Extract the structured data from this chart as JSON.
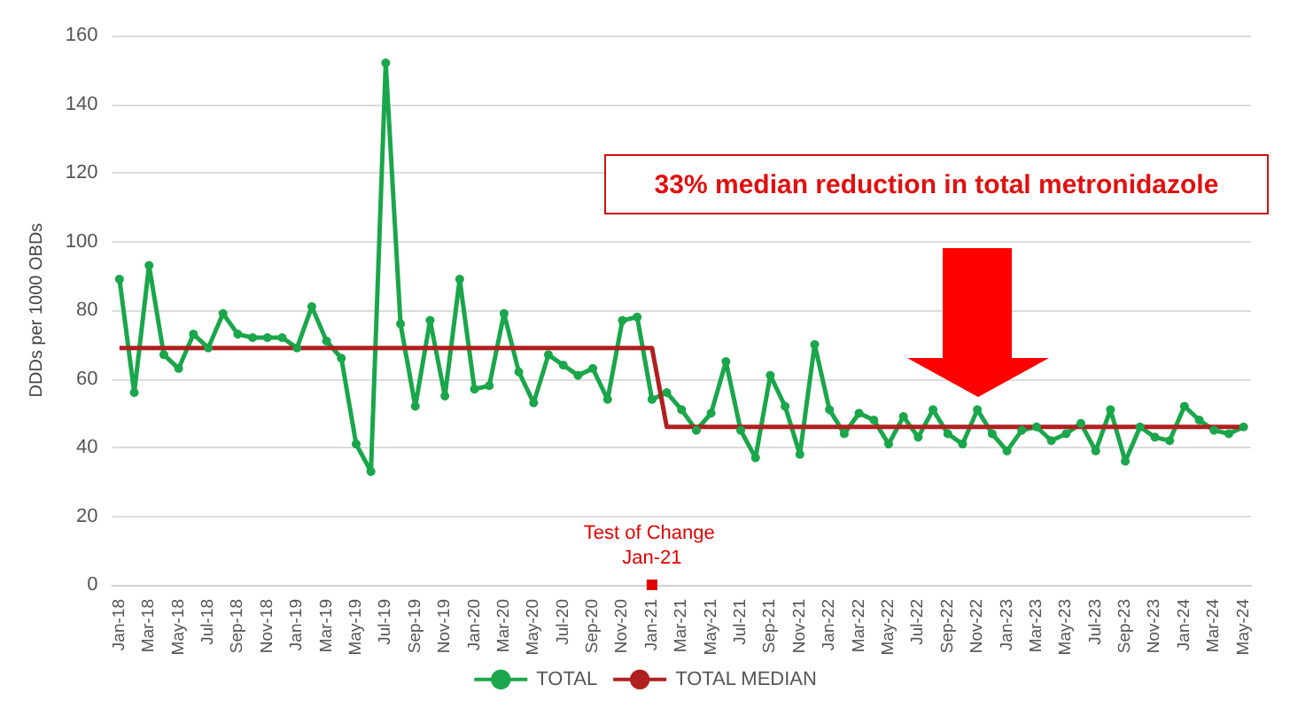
{
  "chart_data": {
    "type": "line",
    "ylabel": "DDDs per 1000 OBDs",
    "categories": [
      "Jan-18",
      null,
      "Mar-18",
      null,
      "May-18",
      null,
      "Jul-18",
      null,
      "Sep-18",
      null,
      "Nov-18",
      null,
      "Jan-19",
      null,
      "Mar-19",
      null,
      "May-19",
      null,
      "Jul-19",
      null,
      "Sep-19",
      null,
      "Nov-19",
      null,
      "Jan-20",
      null,
      "Mar-20",
      null,
      "May-20",
      null,
      "Jul-20",
      null,
      "Sep-20",
      null,
      "Nov-20",
      null,
      "Jan-21",
      null,
      "Mar-21",
      null,
      "May-21",
      null,
      "Jul-21",
      null,
      "Sep-21",
      null,
      "Nov-21",
      null,
      "Jan-22",
      null,
      "Mar-22",
      null,
      "May-22",
      null,
      "Jul-22",
      null,
      "Sep-22",
      null,
      "Nov-22",
      null,
      "Jan-23",
      null,
      "Mar-23",
      null,
      "May-23",
      null,
      "Jul-23",
      null,
      "Sep-23",
      null,
      "Nov-23",
      null,
      "Jan-24",
      null,
      "Mar-24",
      null,
      "May-24"
    ],
    "series": [
      {
        "name": "TOTAL",
        "color": "#1aa64a",
        "marker": "circle",
        "values": [
          89,
          56,
          93,
          67,
          63,
          73,
          69,
          79,
          73,
          72,
          72,
          72,
          69,
          81,
          71,
          66,
          41,
          33,
          152,
          76,
          52,
          77,
          55,
          89,
          57,
          58,
          79,
          62,
          53,
          67,
          64,
          61,
          63,
          54,
          77,
          78,
          54,
          56,
          51,
          45,
          50,
          65,
          45,
          37,
          61,
          52,
          38,
          70,
          51,
          44,
          50,
          48,
          41,
          49,
          43,
          51,
          44,
          41,
          51,
          44,
          39,
          45,
          46,
          42,
          44,
          47,
          39,
          51,
          36,
          46,
          43,
          42,
          52,
          48,
          45,
          44,
          46
        ]
      },
      {
        "name": "TOTAL MEDIAN",
        "color": "#b02020",
        "marker": "none",
        "values": [
          69,
          69,
          69,
          69,
          69,
          69,
          69,
          69,
          69,
          69,
          69,
          69,
          69,
          69,
          69,
          69,
          69,
          69,
          69,
          69,
          69,
          69,
          69,
          69,
          69,
          69,
          69,
          69,
          69,
          69,
          69,
          69,
          69,
          69,
          69,
          69,
          69,
          46,
          46,
          46,
          46,
          46,
          46,
          46,
          46,
          46,
          46,
          46,
          46,
          46,
          46,
          46,
          46,
          46,
          46,
          46,
          46,
          46,
          46,
          46,
          46,
          46,
          46,
          46,
          46,
          46,
          46,
          46,
          46,
          46,
          46,
          46,
          46,
          46,
          46,
          46,
          46
        ]
      }
    ],
    "ylim": [
      0,
      160
    ],
    "yticks": [
      0,
      20,
      40,
      60,
      80,
      100,
      120,
      140,
      160
    ],
    "grid": "y",
    "legend": "bottom",
    "annotations": [
      {
        "text": "Test of Change Jan-21",
        "x": "Jan-21",
        "y": 0
      },
      "33% median reduction in total metronidazole"
    ]
  }
}
